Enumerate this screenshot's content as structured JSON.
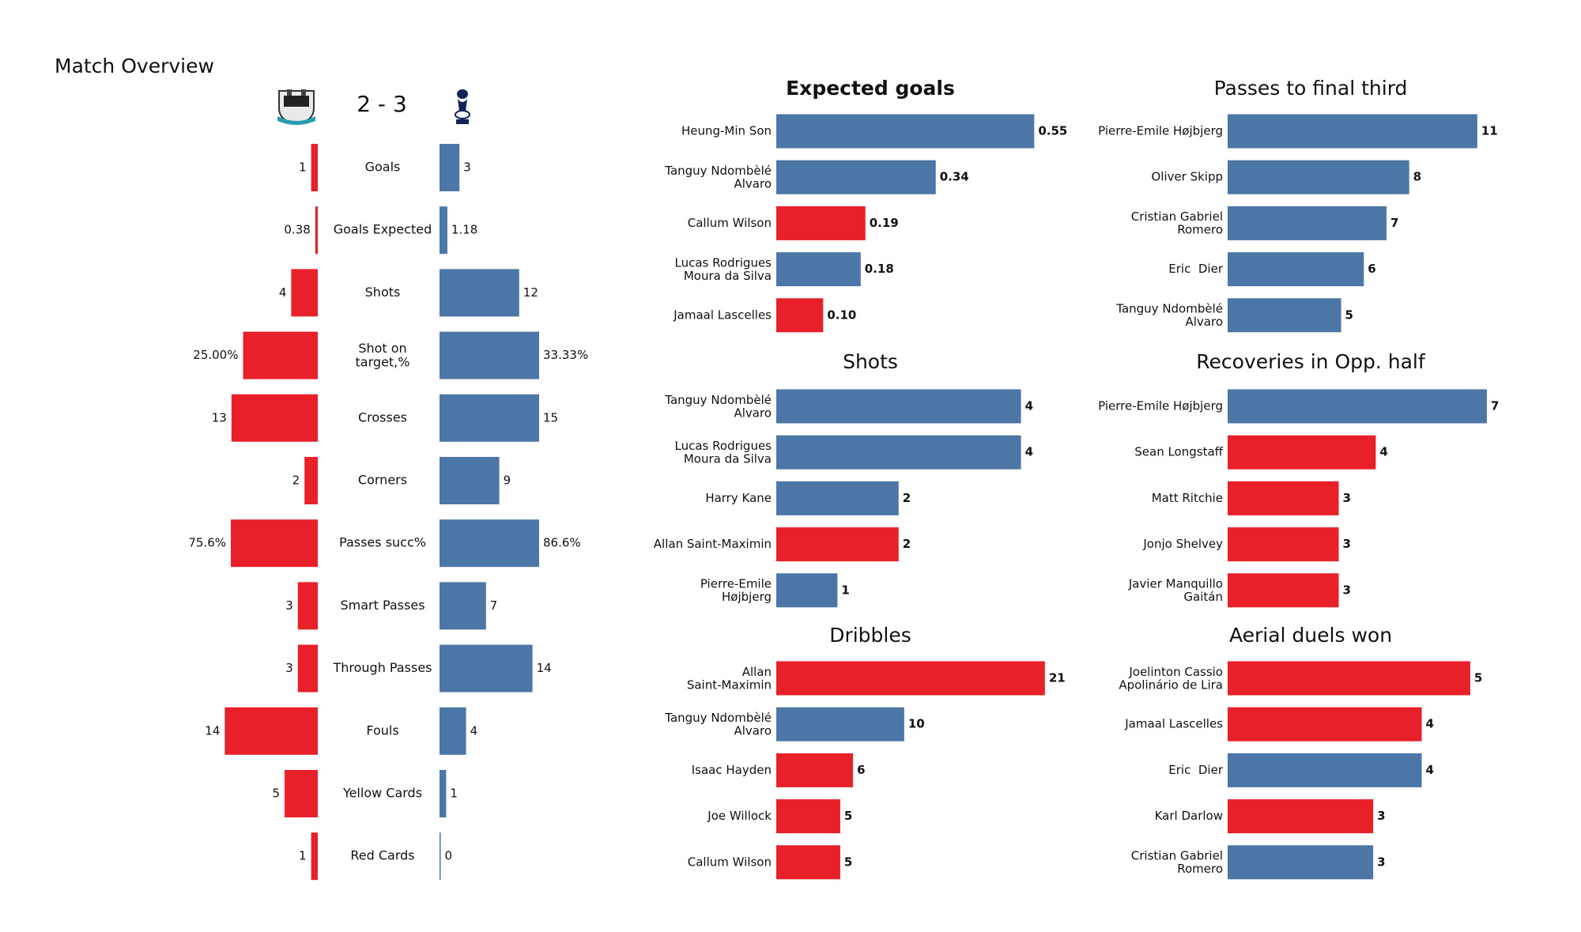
{
  "chart_data": [
    {
      "type": "diverging-bar",
      "title": "Match Overview",
      "score": "2 - 3",
      "categories": [
        "Goals",
        "Goals Expected",
        "Shots",
        "Shot on\ntarget,%",
        "Crosses",
        "Corners",
        "Passes succ%",
        "Smart Passes",
        "Through Passes",
        "Fouls",
        "Yellow Cards",
        "Red Cards"
      ],
      "series": [
        {
          "color": "#e8202a",
          "values": [
            1,
            0.38,
            4,
            25,
            13,
            2,
            75.6,
            3,
            3,
            14,
            5,
            1
          ],
          "value_labels": [
            "1",
            "0.38",
            "4",
            "25.00%",
            "13",
            "2",
            "75.6%",
            "3",
            "3",
            "14",
            "5",
            "1"
          ]
        },
        {
          "color": "#4c76a6",
          "values": [
            3,
            1.18,
            12,
            33.33,
            15,
            9,
            86.6,
            7,
            14,
            4,
            1,
            0
          ],
          "value_labels": [
            "3",
            "1.18",
            "12",
            "33.33%",
            "15",
            "9",
            "86.6%",
            "7",
            "14",
            "4",
            "1",
            "0"
          ]
        }
      ]
    },
    {
      "type": "hbar",
      "title": "Expected goals",
      "categories": [
        "Heung-Min Son",
        "Tanguy Ndombèlé\nAlvaro",
        "Callum Wilson",
        "Lucas Rodrigues\nMoura da Silva",
        "Jamaal Lascelles"
      ],
      "values": [
        0.55,
        0.34,
        0.19,
        0.18,
        0.1
      ],
      "value_labels": [
        "0.55",
        "0.34",
        "0.19",
        "0.18",
        "0.10"
      ],
      "colors": [
        "#4c76a6",
        "#4c76a6",
        "#e8202a",
        "#4c76a6",
        "#e8202a"
      ],
      "xlim": [
        0,
        0.6
      ]
    },
    {
      "type": "hbar",
      "title": "Passes to final third",
      "categories": [
        "Pierre-Emile Højbjerg",
        "Oliver Skipp",
        "Cristian Gabriel\nRomero",
        "Eric  Dier",
        "Tanguy Ndombèlé\nAlvaro"
      ],
      "values": [
        11,
        8,
        7,
        6,
        5
      ],
      "colors": [
        "#4c76a6",
        "#4c76a6",
        "#4c76a6",
        "#4c76a6",
        "#4c76a6"
      ],
      "xlim": [
        0,
        12.4
      ]
    },
    {
      "type": "hbar",
      "title": "Shots",
      "categories": [
        "Tanguy Ndombèlé\nAlvaro",
        "Lucas Rodrigues\nMoura da Silva",
        "Harry Kane",
        "Allan Saint-Maximin",
        "Pierre-Emile\nHøjbjerg"
      ],
      "values": [
        4,
        4,
        2,
        2,
        1
      ],
      "colors": [
        "#4c76a6",
        "#4c76a6",
        "#4c76a6",
        "#e8202a",
        "#4c76a6"
      ],
      "xlim": [
        0,
        4.6
      ]
    },
    {
      "type": "hbar",
      "title": "Recoveries in Opp. half",
      "categories": [
        "Pierre-Emile Højbjerg",
        "Sean Longstaff",
        "Matt Ritchie",
        "Jonjo Shelvey",
        "Javier Manquillo\nGaitán"
      ],
      "values": [
        7,
        4,
        3,
        3,
        3
      ],
      "colors": [
        "#4c76a6",
        "#e8202a",
        "#e8202a",
        "#e8202a",
        "#e8202a"
      ],
      "xlim": [
        0,
        7.6
      ]
    },
    {
      "type": "hbar",
      "title": "Dribbles",
      "categories": [
        "Allan\nSaint-Maximin",
        "Tanguy Ndombèlé\nAlvaro",
        "Isaac Hayden",
        "Joe Willock",
        "Callum Wilson"
      ],
      "values": [
        21,
        10,
        6,
        5,
        5
      ],
      "colors": [
        "#e8202a",
        "#4c76a6",
        "#e8202a",
        "#e8202a",
        "#e8202a"
      ],
      "xlim": [
        0,
        22
      ]
    },
    {
      "type": "hbar",
      "title": "Aerial duels won",
      "categories": [
        "Joelinton Cassio\nApolinário de Lira",
        "Jamaal Lascelles",
        "Eric  Dier",
        "Karl Darlow",
        "Cristian Gabriel\nRomero"
      ],
      "values": [
        5,
        4,
        4,
        3,
        3
      ],
      "colors": [
        "#e8202a",
        "#e8202a",
        "#4c76a6",
        "#e8202a",
        "#4c76a6"
      ],
      "xlim": [
        0,
        5.8
      ]
    }
  ]
}
